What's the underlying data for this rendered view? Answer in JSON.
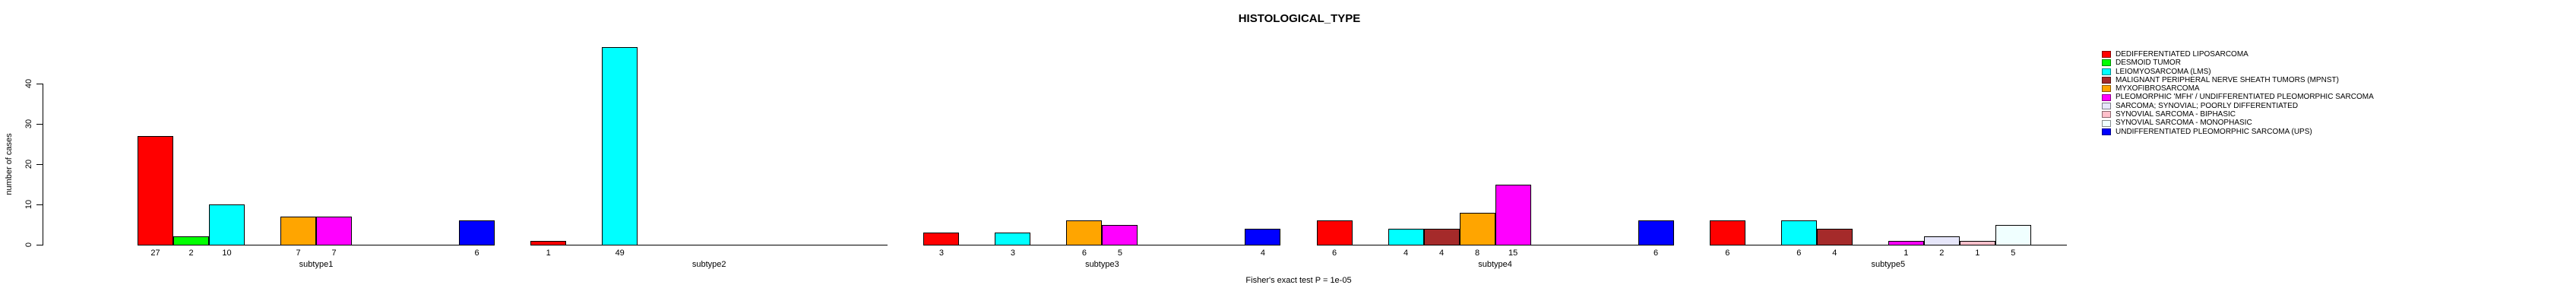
{
  "title": "HISTOLOGICAL_TYPE",
  "caption": "Fisher's exact test P = 1e-05",
  "chart_data": {
    "type": "bar",
    "title": "HISTOLOGICAL_TYPE",
    "xlabel": "",
    "ylabel": "number of cases",
    "categories": [
      "subtype1",
      "subtype2",
      "subtype3",
      "subtype4",
      "subtype5"
    ],
    "y_ticks": [
      0,
      10,
      20,
      30,
      40
    ],
    "ylim": [
      0,
      49
    ],
    "grid": false,
    "bar_value_labels": true,
    "legend_position": "right",
    "series": [
      {
        "name": "DEDIFFERENTIATED LIPOSARCOMA",
        "color": "#FF0000",
        "values": [
          27,
          1,
          3,
          6,
          6
        ]
      },
      {
        "name": "DESMOID TUMOR",
        "color": "#00FF00",
        "values": [
          2,
          0,
          0,
          0,
          0
        ]
      },
      {
        "name": "LEIOMYOSARCOMA (LMS)",
        "color": "#00FFFF",
        "values": [
          10,
          49,
          3,
          4,
          6
        ]
      },
      {
        "name": "MALIGNANT PERIPHERAL NERVE SHEATH TUMORS (MPNST)",
        "color": "#A52A2A",
        "values": [
          0,
          0,
          0,
          4,
          4
        ]
      },
      {
        "name": "MYXOFIBROSARCOMA",
        "color": "#FFA500",
        "values": [
          7,
          0,
          6,
          8,
          0
        ]
      },
      {
        "name": "PLEOMORPHIC 'MFH' / UNDIFFERENTIATED PLEOMORPHIC SARCOMA",
        "color": "#FF00FF",
        "values": [
          7,
          0,
          5,
          15,
          1
        ]
      },
      {
        "name": "SARCOMA; SYNOVIAL; POORLY DIFFERENTIATED",
        "color": "#E6E6FA",
        "values": [
          0,
          0,
          0,
          0,
          2
        ]
      },
      {
        "name": "SYNOVIAL SARCOMA - BIPHASIC",
        "color": "#FFC0CB",
        "values": [
          0,
          0,
          0,
          0,
          1
        ]
      },
      {
        "name": "SYNOVIAL SARCOMA - MONOPHASIC",
        "color": "#F0FFFF",
        "values": [
          0,
          0,
          0,
          0,
          5
        ]
      },
      {
        "name": "UNDIFFERENTIATED PLEOMORPHIC SARCOMA (UPS)",
        "color": "#0000FF",
        "values": [
          6,
          0,
          4,
          6,
          0
        ]
      }
    ]
  }
}
